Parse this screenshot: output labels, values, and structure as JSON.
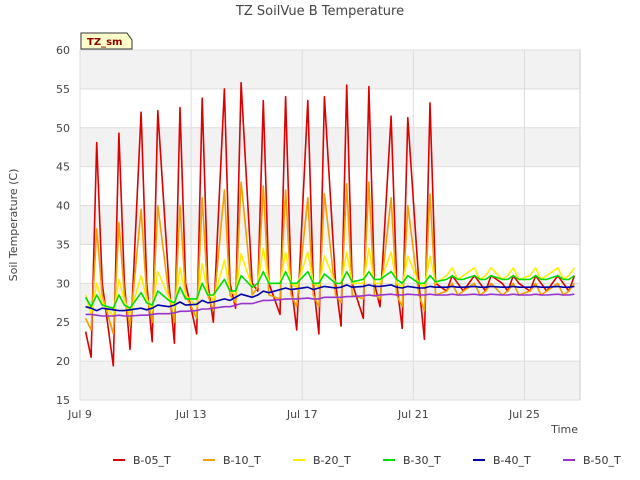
{
  "chart_data": {
    "type": "line",
    "title": "TZ SoilVue B Temperature",
    "xlabel": "Time",
    "ylabel": "Soil Temperature (C)",
    "site_label": "TZ_sm",
    "x_ticks": [
      "Jul 9",
      "Jul 13",
      "Jul 17",
      "Jul 21",
      "Jul 25"
    ],
    "x_range_days": [
      9,
      27
    ],
    "ylim": [
      15,
      60
    ],
    "y_ticks": [
      15,
      20,
      25,
      30,
      35,
      40,
      45,
      50,
      55,
      60
    ],
    "grid": true,
    "legend_position": "bottom",
    "x_day": [
      9.2,
      9.4,
      9.6,
      9.8,
      10.2,
      10.4,
      10.6,
      10.8,
      11.2,
      11.4,
      11.6,
      11.8,
      12.2,
      12.4,
      12.6,
      12.8,
      13.2,
      13.4,
      13.6,
      13.8,
      14.2,
      14.4,
      14.6,
      14.8,
      15.2,
      15.4,
      15.6,
      15.8,
      16.2,
      16.4,
      16.6,
      16.8,
      17.2,
      17.4,
      17.6,
      17.8,
      18.2,
      18.4,
      18.6,
      18.8,
      19.2,
      19.4,
      19.6,
      19.8,
      20.2,
      20.4,
      20.6,
      20.8,
      21.2,
      21.4,
      21.6,
      21.8,
      22.2,
      22.4,
      22.6,
      22.8,
      23.2,
      23.4,
      23.6,
      23.8,
      24.2,
      24.4,
      24.6,
      24.8,
      25.2,
      25.4,
      25.6,
      25.8,
      26.2,
      26.4,
      26.6,
      26.8
    ],
    "series": [
      {
        "name": "B-05_T",
        "color": "#dd0000",
        "values": [
          23.8,
          20.5,
          48.1,
          30.0,
          19.4,
          49.3,
          30.0,
          21.5,
          52.0,
          30.0,
          22.5,
          52.2,
          30.0,
          22.3,
          52.6,
          30.0,
          23.5,
          53.8,
          30.0,
          25.0,
          55.0,
          30.0,
          26.8,
          55.8,
          30.0,
          29.0,
          53.5,
          30.0,
          26.0,
          54.0,
          30.0,
          24.0,
          53.5,
          30.0,
          23.5,
          54.0,
          30.0,
          24.5,
          55.5,
          30.0,
          25.5,
          55.3,
          30.0,
          27.0,
          51.5,
          30.0,
          24.2,
          51.3,
          30.0,
          22.8,
          53.2,
          30.0,
          29.0,
          31.0,
          30.0,
          29.0,
          31.0,
          30.0,
          29.0,
          31.0,
          30.0,
          29.0,
          31.0,
          30.0,
          29.0,
          31.0,
          30.0,
          29.0,
          31.0,
          30.0,
          29.0,
          31.0
        ]
      },
      {
        "name": "B-10_T",
        "color": "#f0a000",
        "values": [
          25.5,
          24.0,
          37.0,
          28.5,
          23.5,
          37.8,
          28.5,
          24.5,
          39.5,
          28.5,
          25.0,
          40.0,
          28.5,
          25.0,
          40.0,
          28.5,
          25.5,
          41.0,
          28.5,
          26.5,
          42.0,
          28.5,
          27.5,
          43.0,
          28.5,
          29.5,
          42.5,
          28.5,
          28.0,
          42.0,
          28.5,
          27.0,
          41.0,
          28.5,
          27.0,
          41.5,
          28.5,
          27.5,
          42.8,
          28.5,
          28.0,
          43.0,
          28.5,
          28.0,
          41.0,
          28.5,
          27.0,
          40.0,
          28.5,
          26.5,
          41.5,
          28.5,
          29.0,
          30.0,
          28.5,
          29.0,
          30.0,
          28.5,
          29.0,
          30.0,
          28.5,
          29.0,
          30.0,
          28.5,
          29.0,
          30.0,
          28.5,
          29.0,
          30.0,
          28.5,
          29.0,
          30.0
        ]
      },
      {
        "name": "B-20_T",
        "color": "#ffee00",
        "values": [
          28.5,
          26.0,
          30.0,
          27.5,
          25.8,
          30.5,
          27.8,
          26.0,
          31.0,
          28.0,
          26.5,
          31.5,
          28.2,
          26.8,
          32.0,
          28.5,
          27.0,
          32.5,
          28.8,
          27.8,
          33.0,
          29.0,
          28.5,
          33.8,
          29.5,
          30.0,
          34.5,
          30.0,
          30.0,
          34.0,
          30.0,
          29.5,
          34.0,
          30.0,
          29.5,
          33.5,
          30.0,
          30.0,
          34.0,
          30.0,
          30.0,
          34.5,
          30.0,
          30.0,
          34.0,
          30.0,
          29.5,
          33.5,
          30.0,
          29.5,
          33.5,
          30.0,
          31.0,
          32.0,
          30.5,
          31.0,
          32.0,
          30.5,
          31.0,
          32.0,
          30.5,
          31.0,
          32.0,
          30.5,
          31.0,
          32.0,
          30.5,
          31.0,
          32.0,
          30.5,
          31.0,
          32.0
        ]
      },
      {
        "name": "B-30_T",
        "color": "#00dd00",
        "values": [
          28.2,
          27.0,
          28.5,
          27.2,
          26.8,
          28.5,
          27.2,
          26.8,
          28.8,
          27.5,
          27.2,
          29.0,
          27.8,
          27.5,
          29.5,
          28.0,
          28.0,
          30.0,
          28.5,
          28.5,
          30.5,
          29.0,
          29.0,
          31.0,
          29.5,
          30.0,
          31.5,
          30.0,
          30.0,
          31.5,
          30.0,
          30.0,
          31.5,
          30.0,
          30.0,
          31.2,
          30.0,
          30.0,
          31.5,
          30.2,
          30.5,
          31.5,
          30.5,
          30.5,
          31.5,
          30.5,
          30.0,
          31.0,
          30.0,
          30.0,
          31.0,
          30.2,
          30.5,
          31.0,
          30.5,
          30.5,
          31.0,
          30.5,
          30.5,
          31.0,
          30.5,
          30.5,
          31.0,
          30.5,
          30.5,
          31.0,
          30.5,
          30.5,
          31.0,
          30.5,
          30.5,
          31.0
        ]
      },
      {
        "name": "B-40_T",
        "color": "#0000aa",
        "values": [
          27.0,
          26.8,
          26.5,
          26.8,
          26.6,
          26.5,
          26.5,
          26.6,
          26.8,
          26.6,
          26.8,
          27.2,
          27.0,
          27.2,
          27.6,
          27.2,
          27.3,
          27.8,
          27.5,
          27.6,
          28.0,
          27.8,
          28.2,
          28.6,
          28.2,
          28.5,
          29.0,
          28.8,
          29.2,
          29.4,
          29.2,
          29.3,
          29.5,
          29.2,
          29.4,
          29.6,
          29.4,
          29.5,
          29.8,
          29.5,
          29.6,
          29.8,
          29.6,
          29.6,
          29.8,
          29.5,
          29.4,
          29.6,
          29.4,
          29.4,
          29.6,
          29.5,
          29.5,
          29.6,
          29.5,
          29.5,
          29.6,
          29.5,
          29.5,
          29.6,
          29.5,
          29.5,
          29.6,
          29.5,
          29.5,
          29.6,
          29.5,
          29.5,
          29.6,
          29.5,
          29.5,
          29.6
        ]
      },
      {
        "name": "B-50_T",
        "color": "#9933cc",
        "values": [
          26.0,
          26.0,
          25.9,
          25.8,
          25.8,
          25.9,
          25.8,
          25.8,
          25.9,
          25.9,
          26.0,
          26.1,
          26.1,
          26.2,
          26.4,
          26.4,
          26.5,
          26.7,
          26.7,
          26.8,
          27.0,
          27.0,
          27.2,
          27.4,
          27.4,
          27.6,
          27.8,
          27.8,
          27.9,
          28.0,
          28.0,
          28.0,
          28.1,
          28.0,
          28.0,
          28.2,
          28.2,
          28.2,
          28.3,
          28.3,
          28.4,
          28.5,
          28.4,
          28.5,
          28.6,
          28.5,
          28.5,
          28.6,
          28.5,
          28.5,
          28.6,
          28.5,
          28.5,
          28.6,
          28.5,
          28.5,
          28.6,
          28.5,
          28.5,
          28.6,
          28.5,
          28.5,
          28.6,
          28.5,
          28.5,
          28.6,
          28.5,
          28.5,
          28.6,
          28.5,
          28.5,
          28.6
        ]
      }
    ]
  }
}
